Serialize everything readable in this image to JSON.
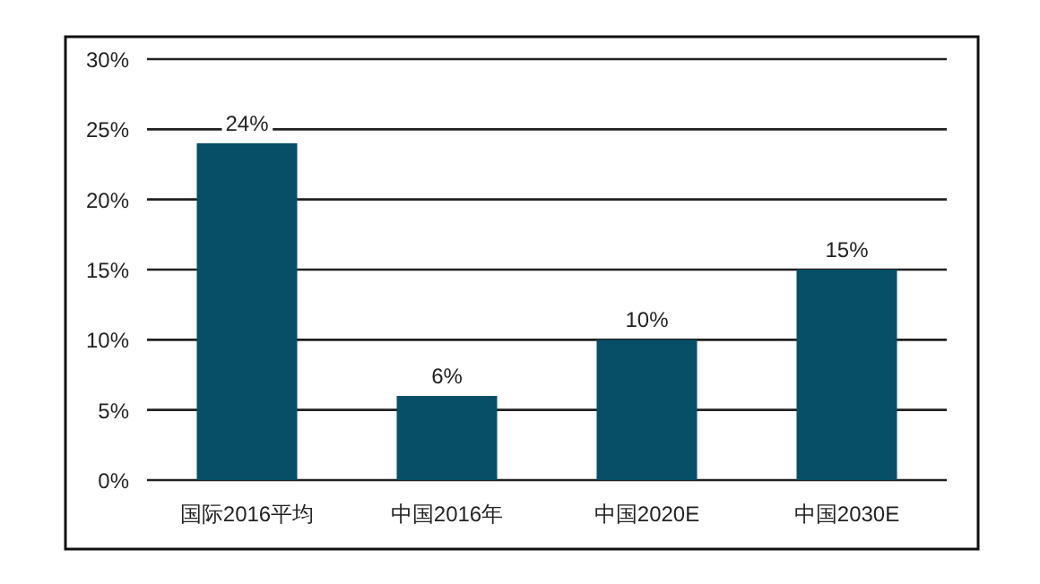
{
  "chart_data": {
    "type": "bar",
    "categories": [
      "国际2016平均",
      "中国2016年",
      "中国2020E",
      "中国2030E"
    ],
    "values": [
      24,
      6,
      10,
      15
    ],
    "color": "#064f66",
    "value_labels": [
      "24%",
      "6%",
      "10%",
      "15%"
    ],
    "ylim": [
      0,
      30
    ],
    "yticks": [
      {
        "value": 0,
        "label": "0%"
      },
      {
        "value": 5,
        "label": "5%"
      },
      {
        "value": 10,
        "label": "10%"
      },
      {
        "value": 15,
        "label": "15%"
      },
      {
        "value": 20,
        "label": "20%"
      },
      {
        "value": 25,
        "label": "25%"
      },
      {
        "value": 30,
        "label": "30%"
      }
    ],
    "grid": "y"
  }
}
